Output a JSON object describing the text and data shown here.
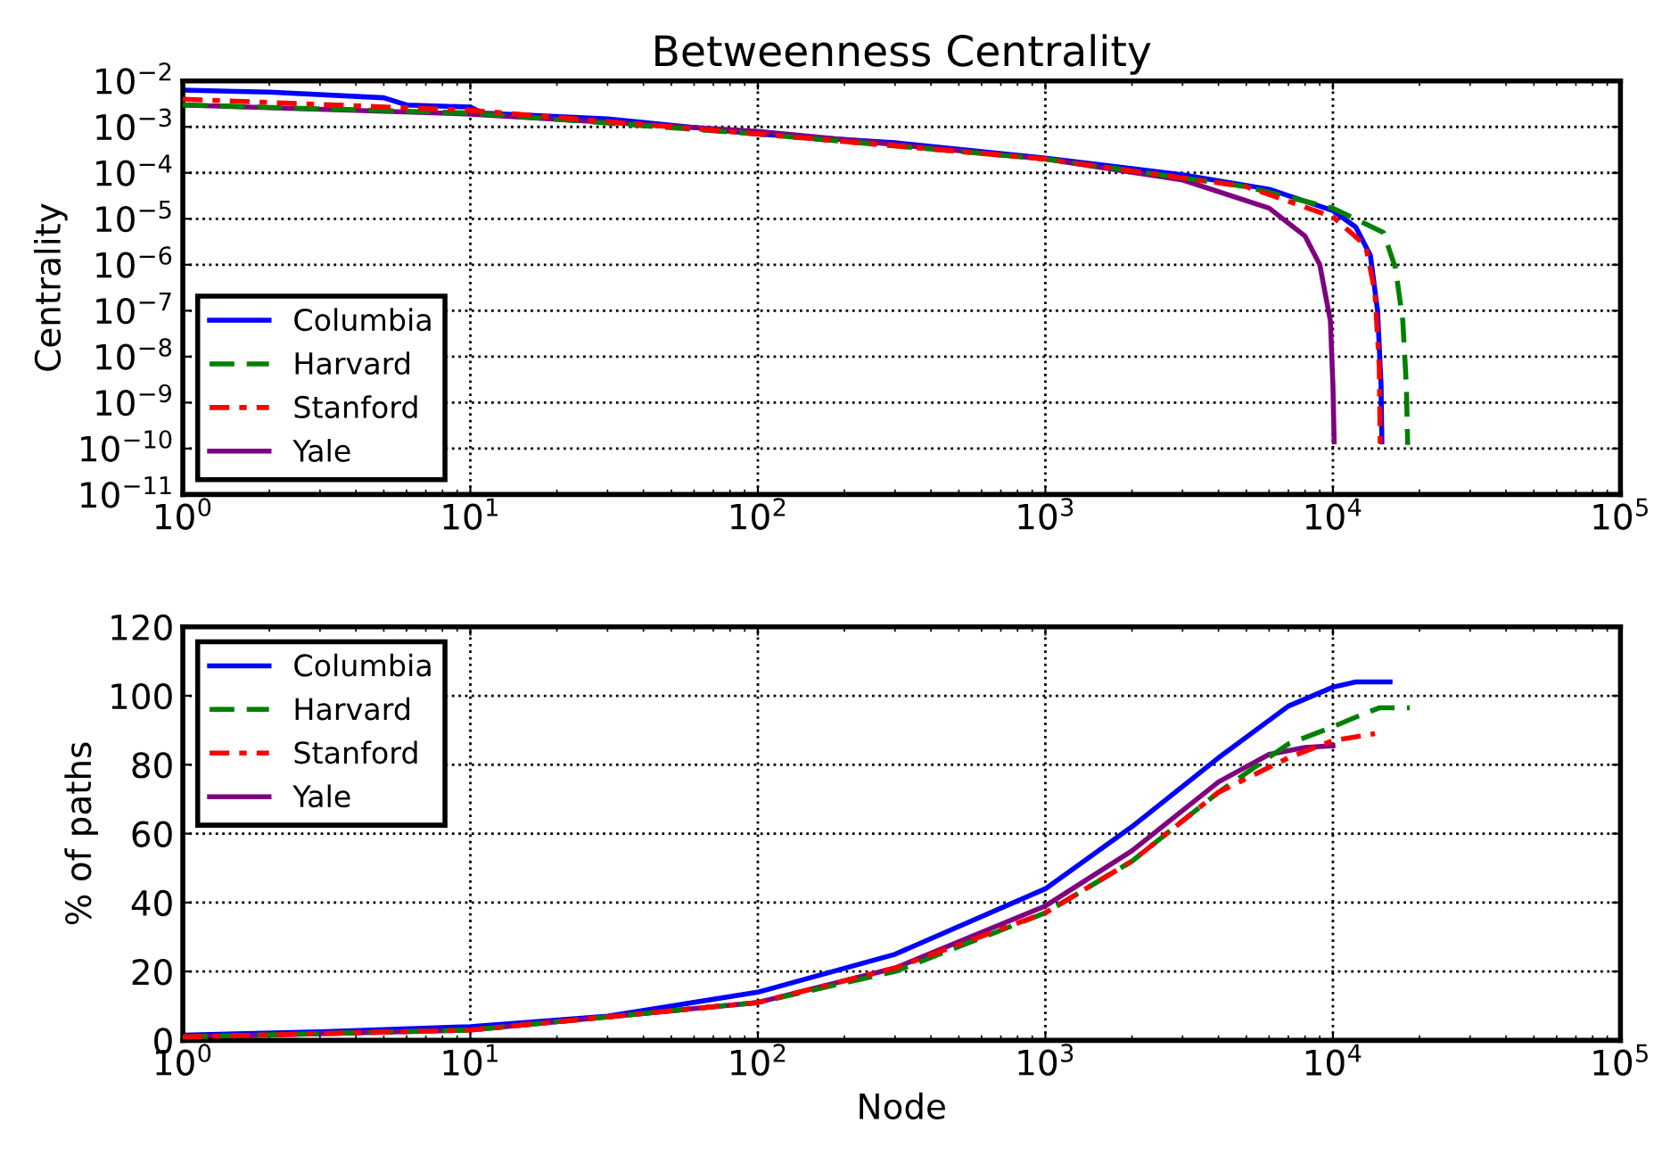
{
  "chart_data": [
    {
      "type": "line",
      "title": "Betweenness Centrality",
      "ylabel": "Centrality",
      "log": "xy",
      "grid": true,
      "legend": "bottom left",
      "xlim": [
        1,
        100000
      ],
      "xticks": [
        {
          "value": 1,
          "label": "10$^{0}$"
        },
        {
          "value": 10,
          "label": "10$^{1}$"
        },
        {
          "value": 100,
          "label": "10$^{2}$"
        },
        {
          "value": 1000,
          "label": "10$^{3}$"
        },
        {
          "value": 10000,
          "label": "10$^{4}$"
        },
        {
          "value": 100000,
          "label": "10$^{5}$"
        }
      ],
      "ylim": [
        1e-11,
        0.01
      ],
      "yticks": [
        {
          "value": 1e-11,
          "label": "10$^{−11}$"
        },
        {
          "value": 1e-10,
          "label": "10$^{−10}$"
        },
        {
          "value": 1e-09,
          "label": "10$^{−9}$"
        },
        {
          "value": 1e-08,
          "label": "10$^{−8}$"
        },
        {
          "value": 1e-07,
          "label": "10$^{−7}$"
        },
        {
          "value": 1e-06,
          "label": "10$^{−6}$"
        },
        {
          "value": 1e-05,
          "label": "10$^{−5}$"
        },
        {
          "value": 0.0001,
          "label": "10$^{−4}$"
        },
        {
          "value": 0.001,
          "label": "10$^{−3}$"
        },
        {
          "value": 0.01,
          "label": "10$^{−2}$"
        }
      ],
      "series": [
        {
          "name": "Columbia",
          "color": "#0000ff",
          "line_style": "solid",
          "x": [
            1,
            2,
            5,
            6,
            10,
            11,
            30,
            100,
            300,
            1000,
            3000,
            6000,
            10000,
            12000,
            13500,
            14300,
            14700,
            14800
          ],
          "values": [
            0.0063,
            0.0057,
            0.0043,
            0.003,
            0.0027,
            0.002,
            0.0015,
            0.0007,
            0.00045,
            0.00021,
            9e-05,
            4.4e-05,
            1.5e-05,
            6.6e-06,
            1.6e-06,
            1e-07,
            2.5e-09,
            1.4e-10
          ]
        },
        {
          "name": "Harvard",
          "color": "#008000",
          "line_style": "dashed",
          "x": [
            1,
            10,
            100,
            1000,
            5000,
            10000,
            15000,
            16500,
            17500,
            18000,
            18200
          ],
          "values": [
            0.003,
            0.002,
            0.0007,
            0.0002,
            5e-05,
            1.7e-05,
            5e-06,
            8.5e-07,
            6e-08,
            2.4e-09,
            1.2e-10
          ]
        },
        {
          "name": "Stanford",
          "color": "#ff0000",
          "line_style": "dashdot",
          "x": [
            1,
            10,
            100,
            1000,
            5000,
            10000,
            13000,
            14000,
            14500,
            14600
          ],
          "values": [
            0.004,
            0.0023,
            0.0007,
            0.0002,
            5e-05,
            1.1e-05,
            2.6e-06,
            2.5e-07,
            6e-09,
            1.2e-10
          ]
        },
        {
          "name": "Yale",
          "color": "#800080",
          "line_style": "solid",
          "x": [
            1,
            10,
            100,
            1000,
            3000,
            6000,
            8000,
            9000,
            9800,
            10000,
            10100
          ],
          "values": [
            0.003,
            0.0019,
            0.0008,
            0.0002,
            7e-05,
            1.7e-05,
            4.2e-06,
            1e-06,
            6e-08,
            2.4e-09,
            1.4e-10
          ]
        }
      ]
    },
    {
      "type": "line",
      "xlabel": "Node",
      "ylabel": "% of paths",
      "log": "x",
      "grid": true,
      "legend": "top left",
      "xlim": [
        1,
        100000
      ],
      "xticks": [
        {
          "value": 1,
          "label": "10$^{0}$"
        },
        {
          "value": 10,
          "label": "10$^{1}$"
        },
        {
          "value": 100,
          "label": "10$^{2}$"
        },
        {
          "value": 1000,
          "label": "10$^{3}$"
        },
        {
          "value": 10000,
          "label": "10$^{4}$"
        },
        {
          "value": 100000,
          "label": "10$^{5}$"
        }
      ],
      "ylim": [
        0,
        120
      ],
      "yticks": [
        0,
        20,
        40,
        60,
        80,
        100,
        120
      ],
      "series": [
        {
          "name": "Columbia",
          "color": "#0000ff",
          "line_style": "solid",
          "x": [
            1,
            3,
            10,
            30,
            100,
            300,
            1000,
            2000,
            4000,
            7000,
            10000,
            12000,
            15800
          ],
          "values": [
            1.5,
            2.5,
            4,
            7,
            14,
            25,
            44,
            62,
            82,
            97,
            102.5,
            104,
            104
          ]
        },
        {
          "name": "Harvard",
          "color": "#008000",
          "line_style": "dashed",
          "x": [
            1,
            10,
            100,
            300,
            1000,
            2000,
            4000,
            7000,
            10000,
            13000,
            14500,
            18500
          ],
          "values": [
            1,
            3,
            11,
            20,
            37,
            52,
            72,
            86,
            91,
            95,
            96.5,
            96.5
          ]
        },
        {
          "name": "Stanford",
          "color": "#ff0000",
          "line_style": "dashdot",
          "x": [
            1,
            10,
            100,
            300,
            1000,
            2000,
            4000,
            7000,
            10000,
            14000
          ],
          "values": [
            1,
            3,
            11,
            21,
            37,
            52,
            72,
            82,
            87,
            89
          ]
        },
        {
          "name": "Yale",
          "color": "#800080",
          "line_style": "solid",
          "x": [
            1,
            10,
            100,
            300,
            1000,
            2000,
            4000,
            6000,
            8000,
            10000
          ],
          "values": [
            1,
            3,
            11,
            21,
            39,
            55,
            75,
            83,
            85,
            85.5
          ]
        }
      ]
    }
  ]
}
